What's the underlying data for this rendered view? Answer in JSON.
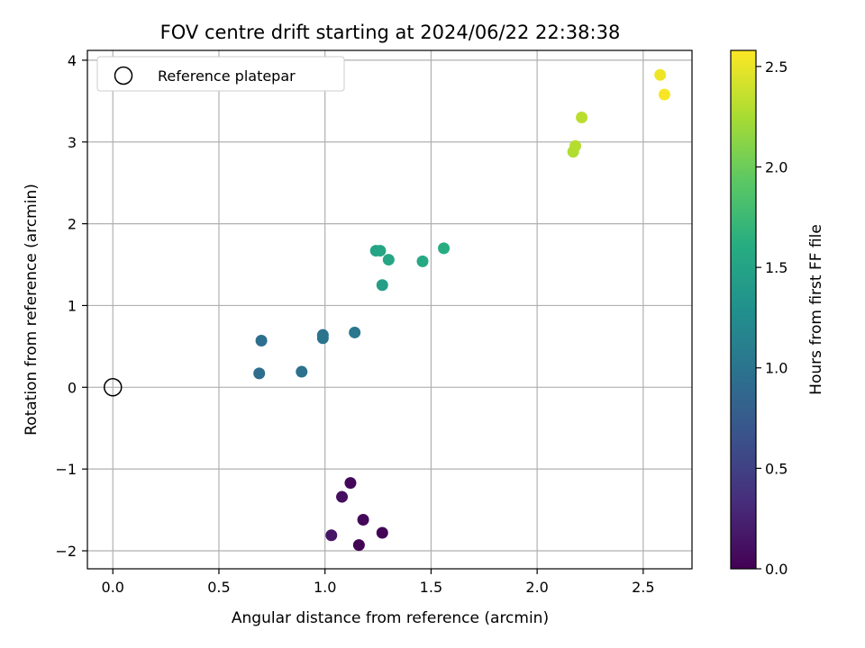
{
  "chart_data": {
    "type": "scatter",
    "title": "FOV centre drift starting at 2024/06/22 22:38:38",
    "xlabel": "Angular distance from reference (arcmin)",
    "ylabel": "Rotation from reference (arcmin)",
    "xlim": [
      -0.12,
      2.73
    ],
    "ylim": [
      -2.22,
      4.12
    ],
    "xticks": [
      0.0,
      0.5,
      1.0,
      1.5,
      2.0,
      2.5
    ],
    "xtick_labels": [
      "0.0",
      "0.5",
      "1.0",
      "1.5",
      "2.0",
      "2.5"
    ],
    "yticks": [
      -2,
      -1,
      0,
      1,
      2,
      3,
      4
    ],
    "ytick_labels": [
      "−2",
      "−1",
      "0",
      "1",
      "2",
      "3",
      "4"
    ],
    "grid": true,
    "legend": {
      "placement": "top-left",
      "entries": [
        "Reference platepar"
      ]
    },
    "reference_point": {
      "x": 0.0,
      "y": 0.0,
      "label": "Reference platepar",
      "marker": "open-circle"
    },
    "colorbar": {
      "label": "Hours from first FF file",
      "range": [
        0.0,
        2.58
      ],
      "ticks": [
        0.0,
        0.5,
        1.0,
        1.5,
        2.0,
        2.5
      ],
      "tick_labels": [
        "0.0",
        "0.5",
        "1.0",
        "1.5",
        "2.0",
        "2.5"
      ],
      "colormap": "viridis"
    },
    "points": [
      {
        "x": 1.12,
        "y": -1.17,
        "c": 0.05
      },
      {
        "x": 1.08,
        "y": -1.34,
        "c": 0.1
      },
      {
        "x": 1.18,
        "y": -1.62,
        "c": 0.05
      },
      {
        "x": 1.03,
        "y": -1.81,
        "c": 0.15
      },
      {
        "x": 1.27,
        "y": -1.78,
        "c": 0.03
      },
      {
        "x": 1.16,
        "y": -1.93,
        "c": 0.02
      },
      {
        "x": 0.7,
        "y": 0.57,
        "c": 0.95
      },
      {
        "x": 0.69,
        "y": 0.17,
        "c": 0.93
      },
      {
        "x": 0.89,
        "y": 0.19,
        "c": 0.97
      },
      {
        "x": 0.99,
        "y": 0.64,
        "c": 0.98
      },
      {
        "x": 0.99,
        "y": 0.6,
        "c": 1.0
      },
      {
        "x": 1.14,
        "y": 0.67,
        "c": 1.03
      },
      {
        "x": 1.27,
        "y": 1.25,
        "c": 1.45
      },
      {
        "x": 1.24,
        "y": 1.67,
        "c": 1.5
      },
      {
        "x": 1.26,
        "y": 1.67,
        "c": 1.52
      },
      {
        "x": 1.3,
        "y": 1.56,
        "c": 1.54
      },
      {
        "x": 1.46,
        "y": 1.54,
        "c": 1.57
      },
      {
        "x": 1.56,
        "y": 1.7,
        "c": 1.6
      },
      {
        "x": 2.17,
        "y": 2.88,
        "c": 2.28
      },
      {
        "x": 2.18,
        "y": 2.95,
        "c": 2.3
      },
      {
        "x": 2.21,
        "y": 3.3,
        "c": 2.32
      },
      {
        "x": 2.58,
        "y": 3.82,
        "c": 2.52
      },
      {
        "x": 2.6,
        "y": 3.58,
        "c": 2.56
      }
    ]
  }
}
